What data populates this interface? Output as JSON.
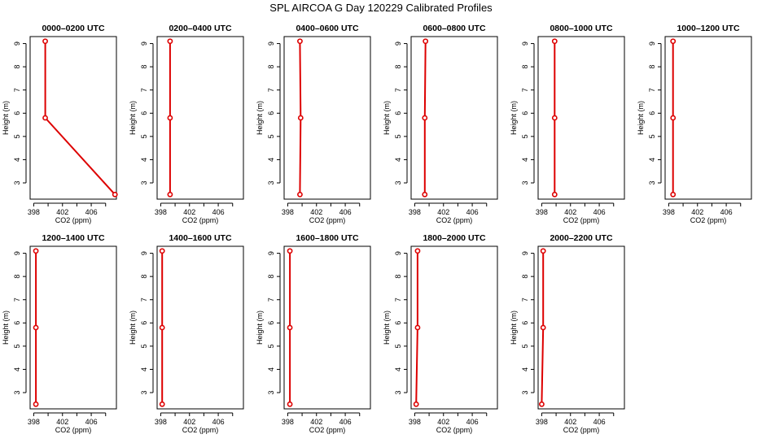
{
  "title": "SPL AIRCOA G  Day 120229  Calibrated Profiles",
  "colors": {
    "profile": "#dd0000",
    "axis": "#000000",
    "background": "#ffffff"
  },
  "chart_data": [
    {
      "type": "line",
      "title": "0000–0200 UTC",
      "xlabel": "CO2 (ppm)",
      "ylabel": "Height (m)",
      "xlim": [
        397.5,
        409.5
      ],
      "ylim": [
        2.3,
        9.3
      ],
      "xticks": [
        398,
        402,
        406
      ],
      "xtick_labels": [
        "398",
        "402",
        "406"
      ],
      "yticks": [
        3,
        4,
        5,
        6,
        7,
        8,
        9
      ],
      "ytick_labels": [
        "3",
        "4",
        "5",
        "6",
        "7",
        "8",
        "9"
      ],
      "points": [
        {
          "x": 399.6,
          "y": 9.1
        },
        {
          "x": 399.6,
          "y": 5.8
        },
        {
          "x": 409.3,
          "y": 2.5
        }
      ]
    },
    {
      "type": "line",
      "title": "0200–0400 UTC",
      "xlabel": "CO2 (ppm)",
      "ylabel": "Height (m)",
      "xlim": [
        397.5,
        409.5
      ],
      "ylim": [
        2.3,
        9.3
      ],
      "xticks": [
        398,
        402,
        406
      ],
      "xtick_labels": [
        "398",
        "402",
        "406"
      ],
      "yticks": [
        3,
        4,
        5,
        6,
        7,
        8,
        9
      ],
      "ytick_labels": [
        "3",
        "4",
        "5",
        "6",
        "7",
        "8",
        "9"
      ],
      "points": [
        {
          "x": 399.3,
          "y": 9.1
        },
        {
          "x": 399.3,
          "y": 5.8
        },
        {
          "x": 399.3,
          "y": 2.5
        }
      ]
    },
    {
      "type": "line",
      "title": "0400–0600 UTC",
      "xlabel": "CO2 (ppm)",
      "ylabel": "Height (m)",
      "xlim": [
        397.5,
        409.5
      ],
      "ylim": [
        2.3,
        9.3
      ],
      "xticks": [
        398,
        402,
        406
      ],
      "xtick_labels": [
        "398",
        "402",
        "406"
      ],
      "yticks": [
        3,
        4,
        5,
        6,
        7,
        8,
        9
      ],
      "ytick_labels": [
        "3",
        "4",
        "5",
        "6",
        "7",
        "8",
        "9"
      ],
      "points": [
        {
          "x": 399.7,
          "y": 9.1
        },
        {
          "x": 399.8,
          "y": 5.8
        },
        {
          "x": 399.7,
          "y": 2.5
        }
      ]
    },
    {
      "type": "line",
      "title": "0600–0800 UTC",
      "xlabel": "CO2 (ppm)",
      "ylabel": "Height (m)",
      "xlim": [
        397.5,
        409.5
      ],
      "ylim": [
        2.3,
        9.3
      ],
      "xticks": [
        398,
        402,
        406
      ],
      "xtick_labels": [
        "398",
        "402",
        "406"
      ],
      "yticks": [
        3,
        4,
        5,
        6,
        7,
        8,
        9
      ],
      "ytick_labels": [
        "3",
        "4",
        "5",
        "6",
        "7",
        "8",
        "9"
      ],
      "points": [
        {
          "x": 399.5,
          "y": 9.1
        },
        {
          "x": 399.4,
          "y": 5.8
        },
        {
          "x": 399.4,
          "y": 2.5
        }
      ]
    },
    {
      "type": "line",
      "title": "0800–1000 UTC",
      "xlabel": "CO2 (ppm)",
      "ylabel": "Height (m)",
      "xlim": [
        397.5,
        409.5
      ],
      "ylim": [
        2.3,
        9.3
      ],
      "xticks": [
        398,
        402,
        406
      ],
      "xtick_labels": [
        "398",
        "402",
        "406"
      ],
      "yticks": [
        3,
        4,
        5,
        6,
        7,
        8,
        9
      ],
      "ytick_labels": [
        "3",
        "4",
        "5",
        "6",
        "7",
        "8",
        "9"
      ],
      "points": [
        {
          "x": 399.8,
          "y": 9.1
        },
        {
          "x": 399.8,
          "y": 5.8
        },
        {
          "x": 399.8,
          "y": 2.5
        }
      ]
    },
    {
      "type": "line",
      "title": "1000–1200 UTC",
      "xlabel": "CO2 (ppm)",
      "ylabel": "Height (m)",
      "xlim": [
        397.5,
        409.5
      ],
      "ylim": [
        2.3,
        9.3
      ],
      "xticks": [
        398,
        402,
        406
      ],
      "xtick_labels": [
        "398",
        "402",
        "406"
      ],
      "yticks": [
        3,
        4,
        5,
        6,
        7,
        8,
        9
      ],
      "ytick_labels": [
        "3",
        "4",
        "5",
        "6",
        "7",
        "8",
        "9"
      ],
      "points": [
        {
          "x": 398.6,
          "y": 9.1
        },
        {
          "x": 398.6,
          "y": 5.8
        },
        {
          "x": 398.6,
          "y": 2.5
        }
      ]
    },
    {
      "type": "line",
      "title": "1200–1400 UTC",
      "xlabel": "CO2 (ppm)",
      "ylabel": "Height (m)",
      "xlim": [
        397.5,
        409.5
      ],
      "ylim": [
        2.3,
        9.3
      ],
      "xticks": [
        398,
        402,
        406
      ],
      "xtick_labels": [
        "398",
        "402",
        "406"
      ],
      "yticks": [
        3,
        4,
        5,
        6,
        7,
        8,
        9
      ],
      "ytick_labels": [
        "3",
        "4",
        "5",
        "6",
        "7",
        "8",
        "9"
      ],
      "points": [
        {
          "x": 398.3,
          "y": 9.1
        },
        {
          "x": 398.3,
          "y": 5.8
        },
        {
          "x": 398.3,
          "y": 2.5
        }
      ]
    },
    {
      "type": "line",
      "title": "1400–1600 UTC",
      "xlabel": "CO2 (ppm)",
      "ylabel": "Height (m)",
      "xlim": [
        397.5,
        409.5
      ],
      "ylim": [
        2.3,
        9.3
      ],
      "xticks": [
        398,
        402,
        406
      ],
      "xtick_labels": [
        "398",
        "402",
        "406"
      ],
      "yticks": [
        3,
        4,
        5,
        6,
        7,
        8,
        9
      ],
      "ytick_labels": [
        "3",
        "4",
        "5",
        "6",
        "7",
        "8",
        "9"
      ],
      "points": [
        {
          "x": 398.2,
          "y": 9.1
        },
        {
          "x": 398.2,
          "y": 5.8
        },
        {
          "x": 398.2,
          "y": 2.5
        }
      ]
    },
    {
      "type": "line",
      "title": "1600–1800 UTC",
      "xlabel": "CO2 (ppm)",
      "ylabel": "Height (m)",
      "xlim": [
        397.5,
        409.5
      ],
      "ylim": [
        2.3,
        9.3
      ],
      "xticks": [
        398,
        402,
        406
      ],
      "xtick_labels": [
        "398",
        "402",
        "406"
      ],
      "yticks": [
        3,
        4,
        5,
        6,
        7,
        8,
        9
      ],
      "ytick_labels": [
        "3",
        "4",
        "5",
        "6",
        "7",
        "8",
        "9"
      ],
      "points": [
        {
          "x": 398.3,
          "y": 9.1
        },
        {
          "x": 398.3,
          "y": 5.8
        },
        {
          "x": 398.3,
          "y": 2.5
        }
      ]
    },
    {
      "type": "line",
      "title": "1800–2000 UTC",
      "xlabel": "CO2 (ppm)",
      "ylabel": "Height (m)",
      "xlim": [
        397.5,
        409.5
      ],
      "ylim": [
        2.3,
        9.3
      ],
      "xticks": [
        398,
        402,
        406
      ],
      "xtick_labels": [
        "398",
        "402",
        "406"
      ],
      "yticks": [
        3,
        4,
        5,
        6,
        7,
        8,
        9
      ],
      "ytick_labels": [
        "3",
        "4",
        "5",
        "6",
        "7",
        "8",
        "9"
      ],
      "points": [
        {
          "x": 398.4,
          "y": 9.1
        },
        {
          "x": 398.4,
          "y": 5.8
        },
        {
          "x": 398.2,
          "y": 2.5
        }
      ]
    },
    {
      "type": "line",
      "title": "2000–2200 UTC",
      "xlabel": "CO2 (ppm)",
      "ylabel": "Height (m)",
      "xlim": [
        397.5,
        409.5
      ],
      "ylim": [
        2.3,
        9.3
      ],
      "xticks": [
        398,
        402,
        406
      ],
      "xtick_labels": [
        "398",
        "402",
        "406"
      ],
      "yticks": [
        3,
        4,
        5,
        6,
        7,
        8,
        9
      ],
      "ytick_labels": [
        "3",
        "4",
        "5",
        "6",
        "7",
        "8",
        "9"
      ],
      "points": [
        {
          "x": 398.2,
          "y": 9.1
        },
        {
          "x": 398.2,
          "y": 5.8
        },
        {
          "x": 398.0,
          "y": 2.5
        }
      ]
    }
  ]
}
